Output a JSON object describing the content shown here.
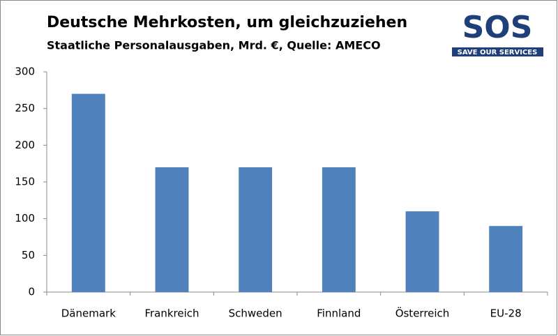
{
  "chart_data": {
    "type": "bar",
    "title": "Deutsche Mehrkosten, um gleichzuziehen",
    "subtitle": "Staatliche Personalausgaben, Mrd. €, Quelle: AMECO",
    "logo": {
      "text": "SOS",
      "tagline": "SAVE OUR SERVICES"
    },
    "categories": [
      "Dänemark",
      "Frankreich",
      "Schweden",
      "Finnland",
      "Österreich",
      "EU-28"
    ],
    "values": [
      270,
      170,
      170,
      170,
      110,
      90
    ],
    "color": "#4f81bd",
    "ylim": [
      0,
      300
    ],
    "yticks": [
      0,
      50,
      100,
      150,
      200,
      250,
      300
    ],
    "grid": false
  }
}
